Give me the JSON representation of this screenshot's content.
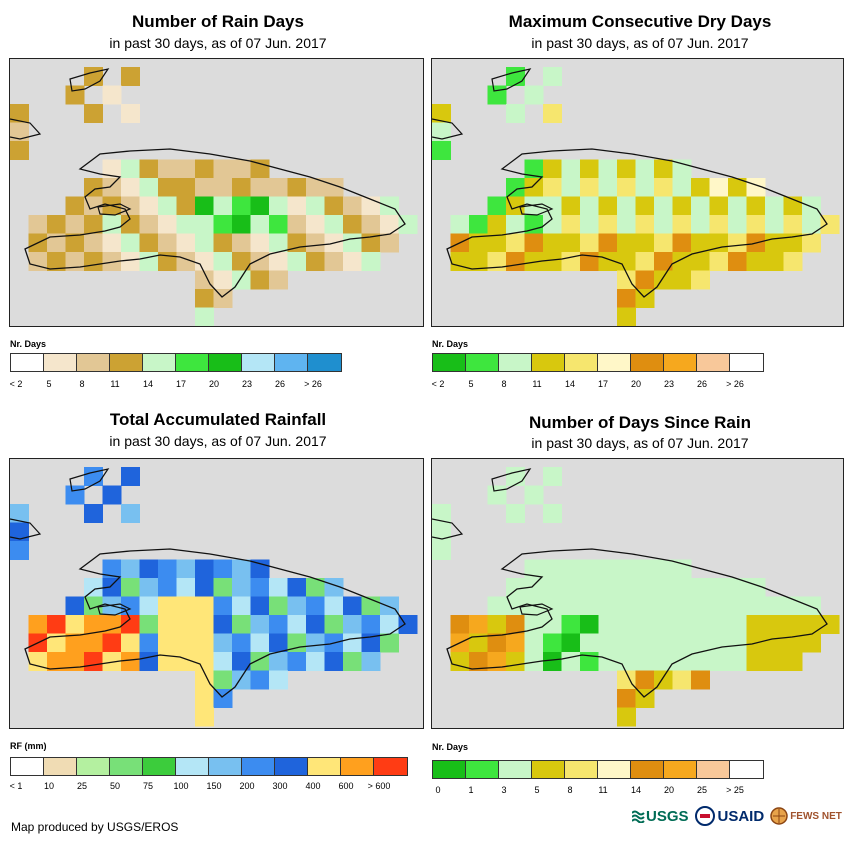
{
  "credit": "Map produced by USGS/EROS",
  "logos": {
    "usgs": "USGS",
    "usaid": "USAID",
    "fewsnet": "FEWS NET"
  },
  "panels": [
    {
      "key": "rain_days",
      "title": "Number of Rain Days",
      "subtitle": "in past 30 days, as of 07 Jun. 2017",
      "legend_title": "Nr. Days",
      "legend_labels": [
        "< 2",
        "5",
        "8",
        "11",
        "14",
        "17",
        "20",
        "23",
        "26",
        "> 26"
      ],
      "legend_colors": [
        "#ffffff",
        "#f5e6cc",
        "#e2c795",
        "#cca233",
        "#c8f6c8",
        "#3ee63e",
        "#18be18",
        "#b4e6f6",
        "#5fb4f0",
        "#1f8fcf"
      ]
    },
    {
      "key": "max_dry",
      "title": "Maximum Consecutive Dry Days",
      "subtitle": "in past 30 days, as of 07 Jun. 2017",
      "legend_title": "Nr. Days",
      "legend_labels": [
        "< 2",
        "5",
        "8",
        "11",
        "14",
        "17",
        "20",
        "23",
        "26",
        "> 26"
      ],
      "legend_colors": [
        "#18be18",
        "#3ee63e",
        "#c8f6c8",
        "#d8c80e",
        "#f6e66e",
        "#fff7c8",
        "#df8e10",
        "#f6a81e",
        "#f8c89a",
        "#ffffff"
      ]
    },
    {
      "key": "rainfall",
      "title": "Total Accumulated Rainfall",
      "subtitle": "in past 30 days, as of 07 Jun. 2017",
      "legend_title": "RF (mm)",
      "legend_labels": [
        "< 1",
        "10",
        "25",
        "50",
        "75",
        "100",
        "150",
        "200",
        "300",
        "400",
        "600",
        "> 600"
      ],
      "legend_colors": [
        "#ffffff",
        "#f0dcb4",
        "#b4f0a0",
        "#78e078",
        "#3ccc3c",
        "#b4e6f6",
        "#78c0f0",
        "#3c8cf0",
        "#1f64dc",
        "#ffe678",
        "#ffa01e",
        "#ff3c14"
      ]
    },
    {
      "key": "since_rain",
      "title": "Number of Days Since Rain",
      "subtitle": "in past 30 days, as of 07 Jun. 2017",
      "legend_title": "Nr. Days",
      "legend_labels": [
        "0",
        "1",
        "3",
        "5",
        "8",
        "11",
        "14",
        "20",
        "25",
        "> 25"
      ],
      "legend_colors": [
        "#18be18",
        "#3ee63e",
        "#c8f6c8",
        "#d8c80e",
        "#f6e66e",
        "#fff7c8",
        "#df8e10",
        "#f6a81e",
        "#f8c89a",
        "#ffffff"
      ]
    }
  ]
}
